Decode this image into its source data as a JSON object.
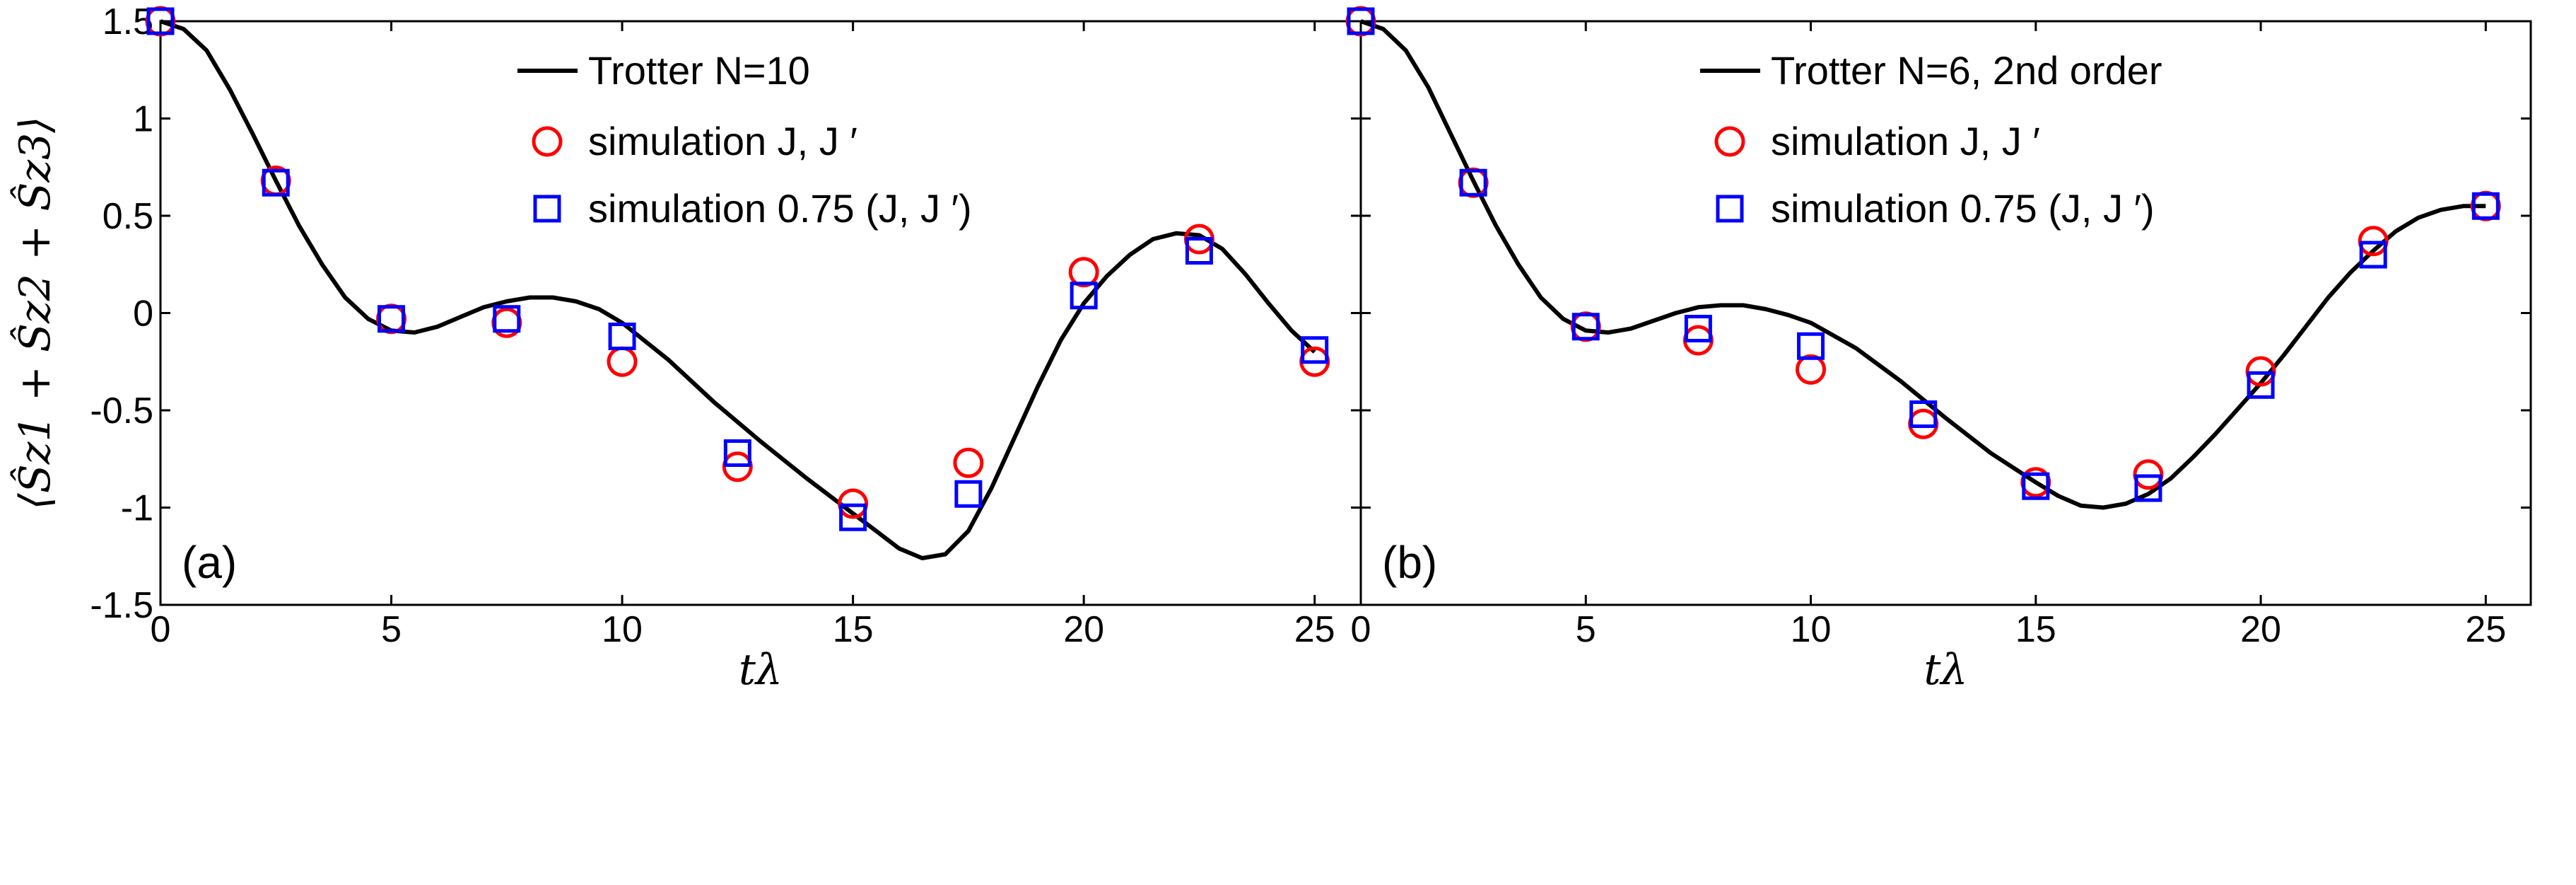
{
  "chart_data": [
    {
      "type": "line",
      "panel_label": "(a)",
      "xlabel": "tλ",
      "ylabel": "⟨Ŝz1 + Ŝz2 + Ŝz3⟩",
      "xlim": [
        0,
        26
      ],
      "ylim": [
        -1.5,
        1.5
      ],
      "xticks": [
        0,
        5,
        10,
        15,
        20,
        25
      ],
      "yticks": [
        -1.5,
        -1,
        -0.5,
        0,
        0.5,
        1,
        1.5
      ],
      "xtick_labels": [
        "0",
        "5",
        "10",
        "15",
        "20",
        "25"
      ],
      "ytick_labels": [
        "-1.5",
        "-1",
        "-0.5",
        "0",
        "0.5",
        "1",
        "1.5"
      ],
      "grid": false,
      "legend_position": "top-center",
      "series": [
        {
          "name": "Trotter N=10",
          "style": "line",
          "color": "#000000",
          "x": [
            0,
            0.5,
            1,
            1.5,
            2,
            2.5,
            3,
            3.5,
            4,
            4.5,
            5,
            5.5,
            6,
            6.5,
            7,
            7.5,
            8,
            8.5,
            9,
            9.5,
            10,
            11,
            12,
            13,
            14,
            15,
            15.5,
            16,
            16.5,
            17,
            17.5,
            18,
            18.5,
            19,
            19.5,
            20,
            20.5,
            21,
            21.5,
            22,
            22.5,
            23,
            23.5,
            24,
            24.5,
            25
          ],
          "y": [
            1.5,
            1.46,
            1.35,
            1.15,
            0.92,
            0.68,
            0.45,
            0.25,
            0.08,
            -0.03,
            -0.09,
            -0.1,
            -0.07,
            -0.02,
            0.03,
            0.06,
            0.08,
            0.08,
            0.06,
            0.02,
            -0.05,
            -0.24,
            -0.46,
            -0.66,
            -0.85,
            -1.03,
            -1.12,
            -1.21,
            -1.26,
            -1.24,
            -1.12,
            -0.9,
            -0.64,
            -0.38,
            -0.14,
            0.05,
            0.19,
            0.3,
            0.38,
            0.41,
            0.4,
            0.33,
            0.2,
            0.05,
            -0.09,
            -0.2
          ]
        },
        {
          "name": "simulation J, J ′",
          "style": "marker-circle",
          "color": "#ff0000",
          "x": [
            0,
            2.5,
            5,
            7.5,
            10,
            12.5,
            15,
            17.5,
            20,
            22.5,
            25
          ],
          "y": [
            1.5,
            0.68,
            -0.03,
            -0.05,
            -0.25,
            -0.79,
            -0.98,
            -0.77,
            0.21,
            0.38,
            -0.25
          ]
        },
        {
          "name": "simulation 0.75 (J, J ′)",
          "style": "marker-square",
          "color": "#0000ff",
          "x": [
            0,
            2.5,
            5,
            7.5,
            10,
            12.5,
            15,
            17.5,
            20,
            22.5,
            25
          ],
          "y": [
            1.5,
            0.67,
            -0.03,
            -0.03,
            -0.12,
            -0.72,
            -1.05,
            -0.93,
            0.09,
            0.32,
            -0.19
          ]
        }
      ]
    },
    {
      "type": "line",
      "panel_label": "(b)",
      "xlabel": "tλ",
      "xlim": [
        0,
        26
      ],
      "ylim": [
        -1.5,
        1.5
      ],
      "xticks": [
        0,
        5,
        10,
        15,
        20,
        25
      ],
      "yticks": [
        -1.5,
        -1,
        -0.5,
        0,
        0.5,
        1,
        1.5
      ],
      "xtick_labels": [
        "0",
        "5",
        "10",
        "15",
        "20",
        "25"
      ],
      "grid": false,
      "legend_position": "top-center",
      "series": [
        {
          "name": "Trotter N=6, 2nd order",
          "style": "line",
          "color": "#000000",
          "x": [
            0,
            0.5,
            1,
            1.5,
            2,
            2.5,
            3,
            3.5,
            4,
            4.5,
            5,
            5.5,
            6,
            6.5,
            7,
            7.5,
            8,
            8.5,
            9,
            9.5,
            10,
            11,
            12,
            13,
            14,
            15,
            15.5,
            16,
            16.5,
            17,
            17.5,
            18,
            18.5,
            19,
            19.5,
            20,
            20.5,
            21,
            21.5,
            22,
            22.5,
            23,
            23.5,
            24,
            24.5,
            25
          ],
          "y": [
            1.5,
            1.46,
            1.35,
            1.16,
            0.92,
            0.68,
            0.45,
            0.25,
            0.08,
            -0.03,
            -0.09,
            -0.1,
            -0.08,
            -0.04,
            0.0,
            0.03,
            0.04,
            0.04,
            0.02,
            -0.01,
            -0.05,
            -0.18,
            -0.35,
            -0.54,
            -0.72,
            -0.87,
            -0.94,
            -0.99,
            -1.0,
            -0.98,
            -0.93,
            -0.85,
            -0.74,
            -0.62,
            -0.49,
            -0.36,
            -0.22,
            -0.07,
            0.08,
            0.21,
            0.32,
            0.42,
            0.49,
            0.53,
            0.55,
            0.55
          ]
        },
        {
          "name": "simulation J, J ′",
          "style": "marker-circle",
          "color": "#ff0000",
          "x": [
            0,
            2.5,
            5,
            7.5,
            10,
            12.5,
            15,
            17.5,
            20,
            22.5,
            25
          ],
          "y": [
            1.5,
            0.67,
            -0.07,
            -0.14,
            -0.29,
            -0.57,
            -0.87,
            -0.83,
            -0.3,
            0.37,
            0.55
          ]
        },
        {
          "name": "simulation 0.75 (J, J ′)",
          "style": "marker-square",
          "color": "#0000ff",
          "x": [
            0,
            2.5,
            5,
            7.5,
            10,
            12.5,
            15,
            17.5,
            20,
            22.5,
            25
          ],
          "y": [
            1.5,
            0.67,
            -0.07,
            -0.08,
            -0.17,
            -0.52,
            -0.89,
            -0.9,
            -0.37,
            0.3,
            0.55
          ]
        }
      ]
    }
  ]
}
